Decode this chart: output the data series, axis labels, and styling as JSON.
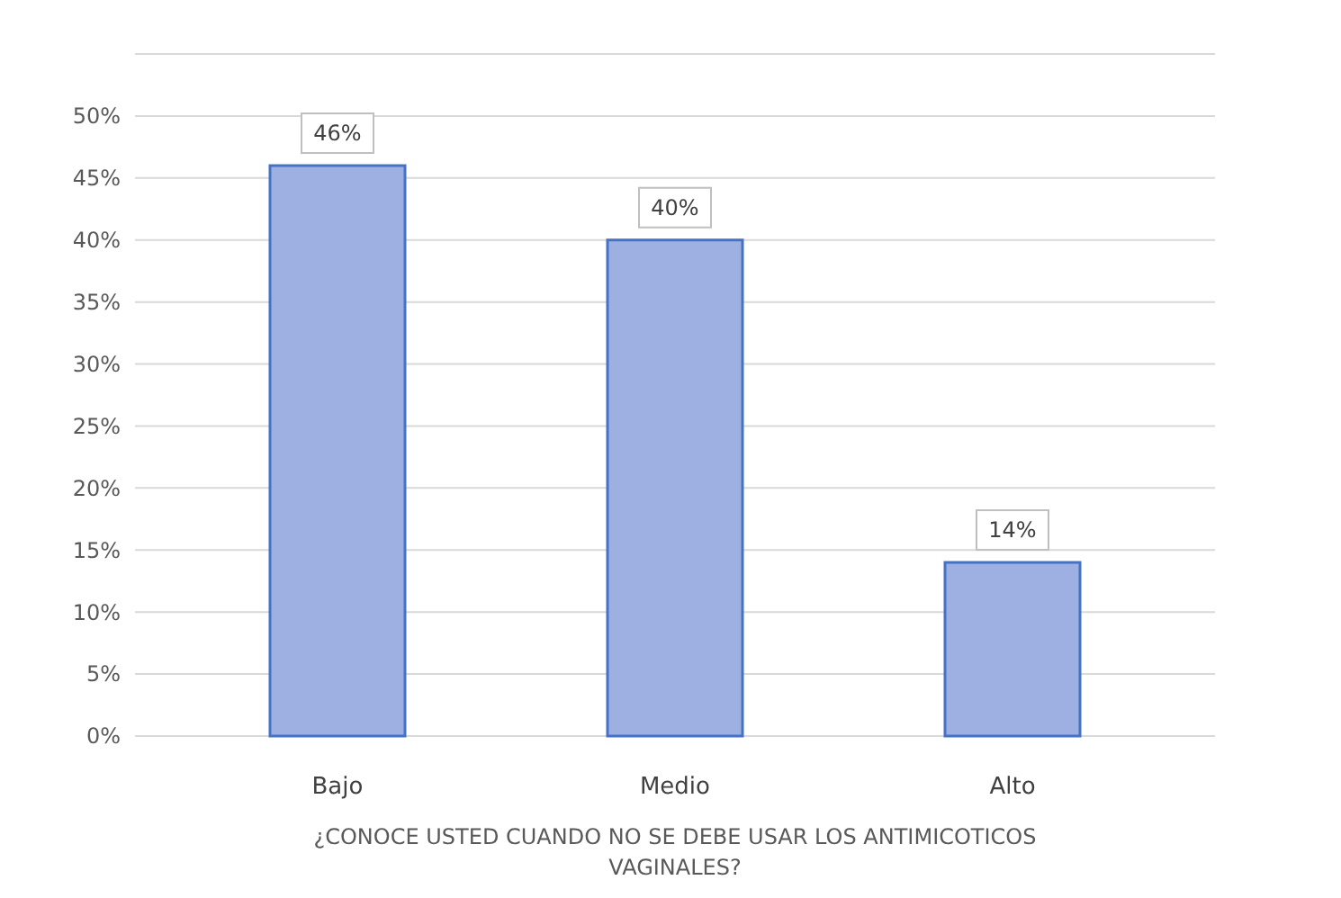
{
  "chart_data": {
    "type": "bar",
    "xlabel": "¿CONOCE USTED CUANDO NO SE DEBE USAR LOS ANTIMICOTICOS VAGINALES?",
    "categories": [
      "Bajo",
      "Medio",
      "Alto"
    ],
    "values": [
      46,
      40,
      14
    ],
    "value_labels": [
      "46%",
      "40%",
      "14%"
    ],
    "color": "#9eb0e2",
    "ylim": [
      0,
      55
    ],
    "yticks": [
      {
        "value": 0,
        "label": "0%"
      },
      {
        "value": 5,
        "label": "5%"
      },
      {
        "value": 10,
        "label": "10%"
      },
      {
        "value": 15,
        "label": "15%"
      },
      {
        "value": 20,
        "label": "20%"
      },
      {
        "value": 25,
        "label": "25%"
      },
      {
        "value": 30,
        "label": "30%"
      },
      {
        "value": 35,
        "label": "35%"
      },
      {
        "value": 40,
        "label": "40%"
      },
      {
        "value": 45,
        "label": "45%"
      },
      {
        "value": 50,
        "label": "50%"
      },
      {
        "value": 55,
        "label": null
      }
    ],
    "grid": true
  }
}
